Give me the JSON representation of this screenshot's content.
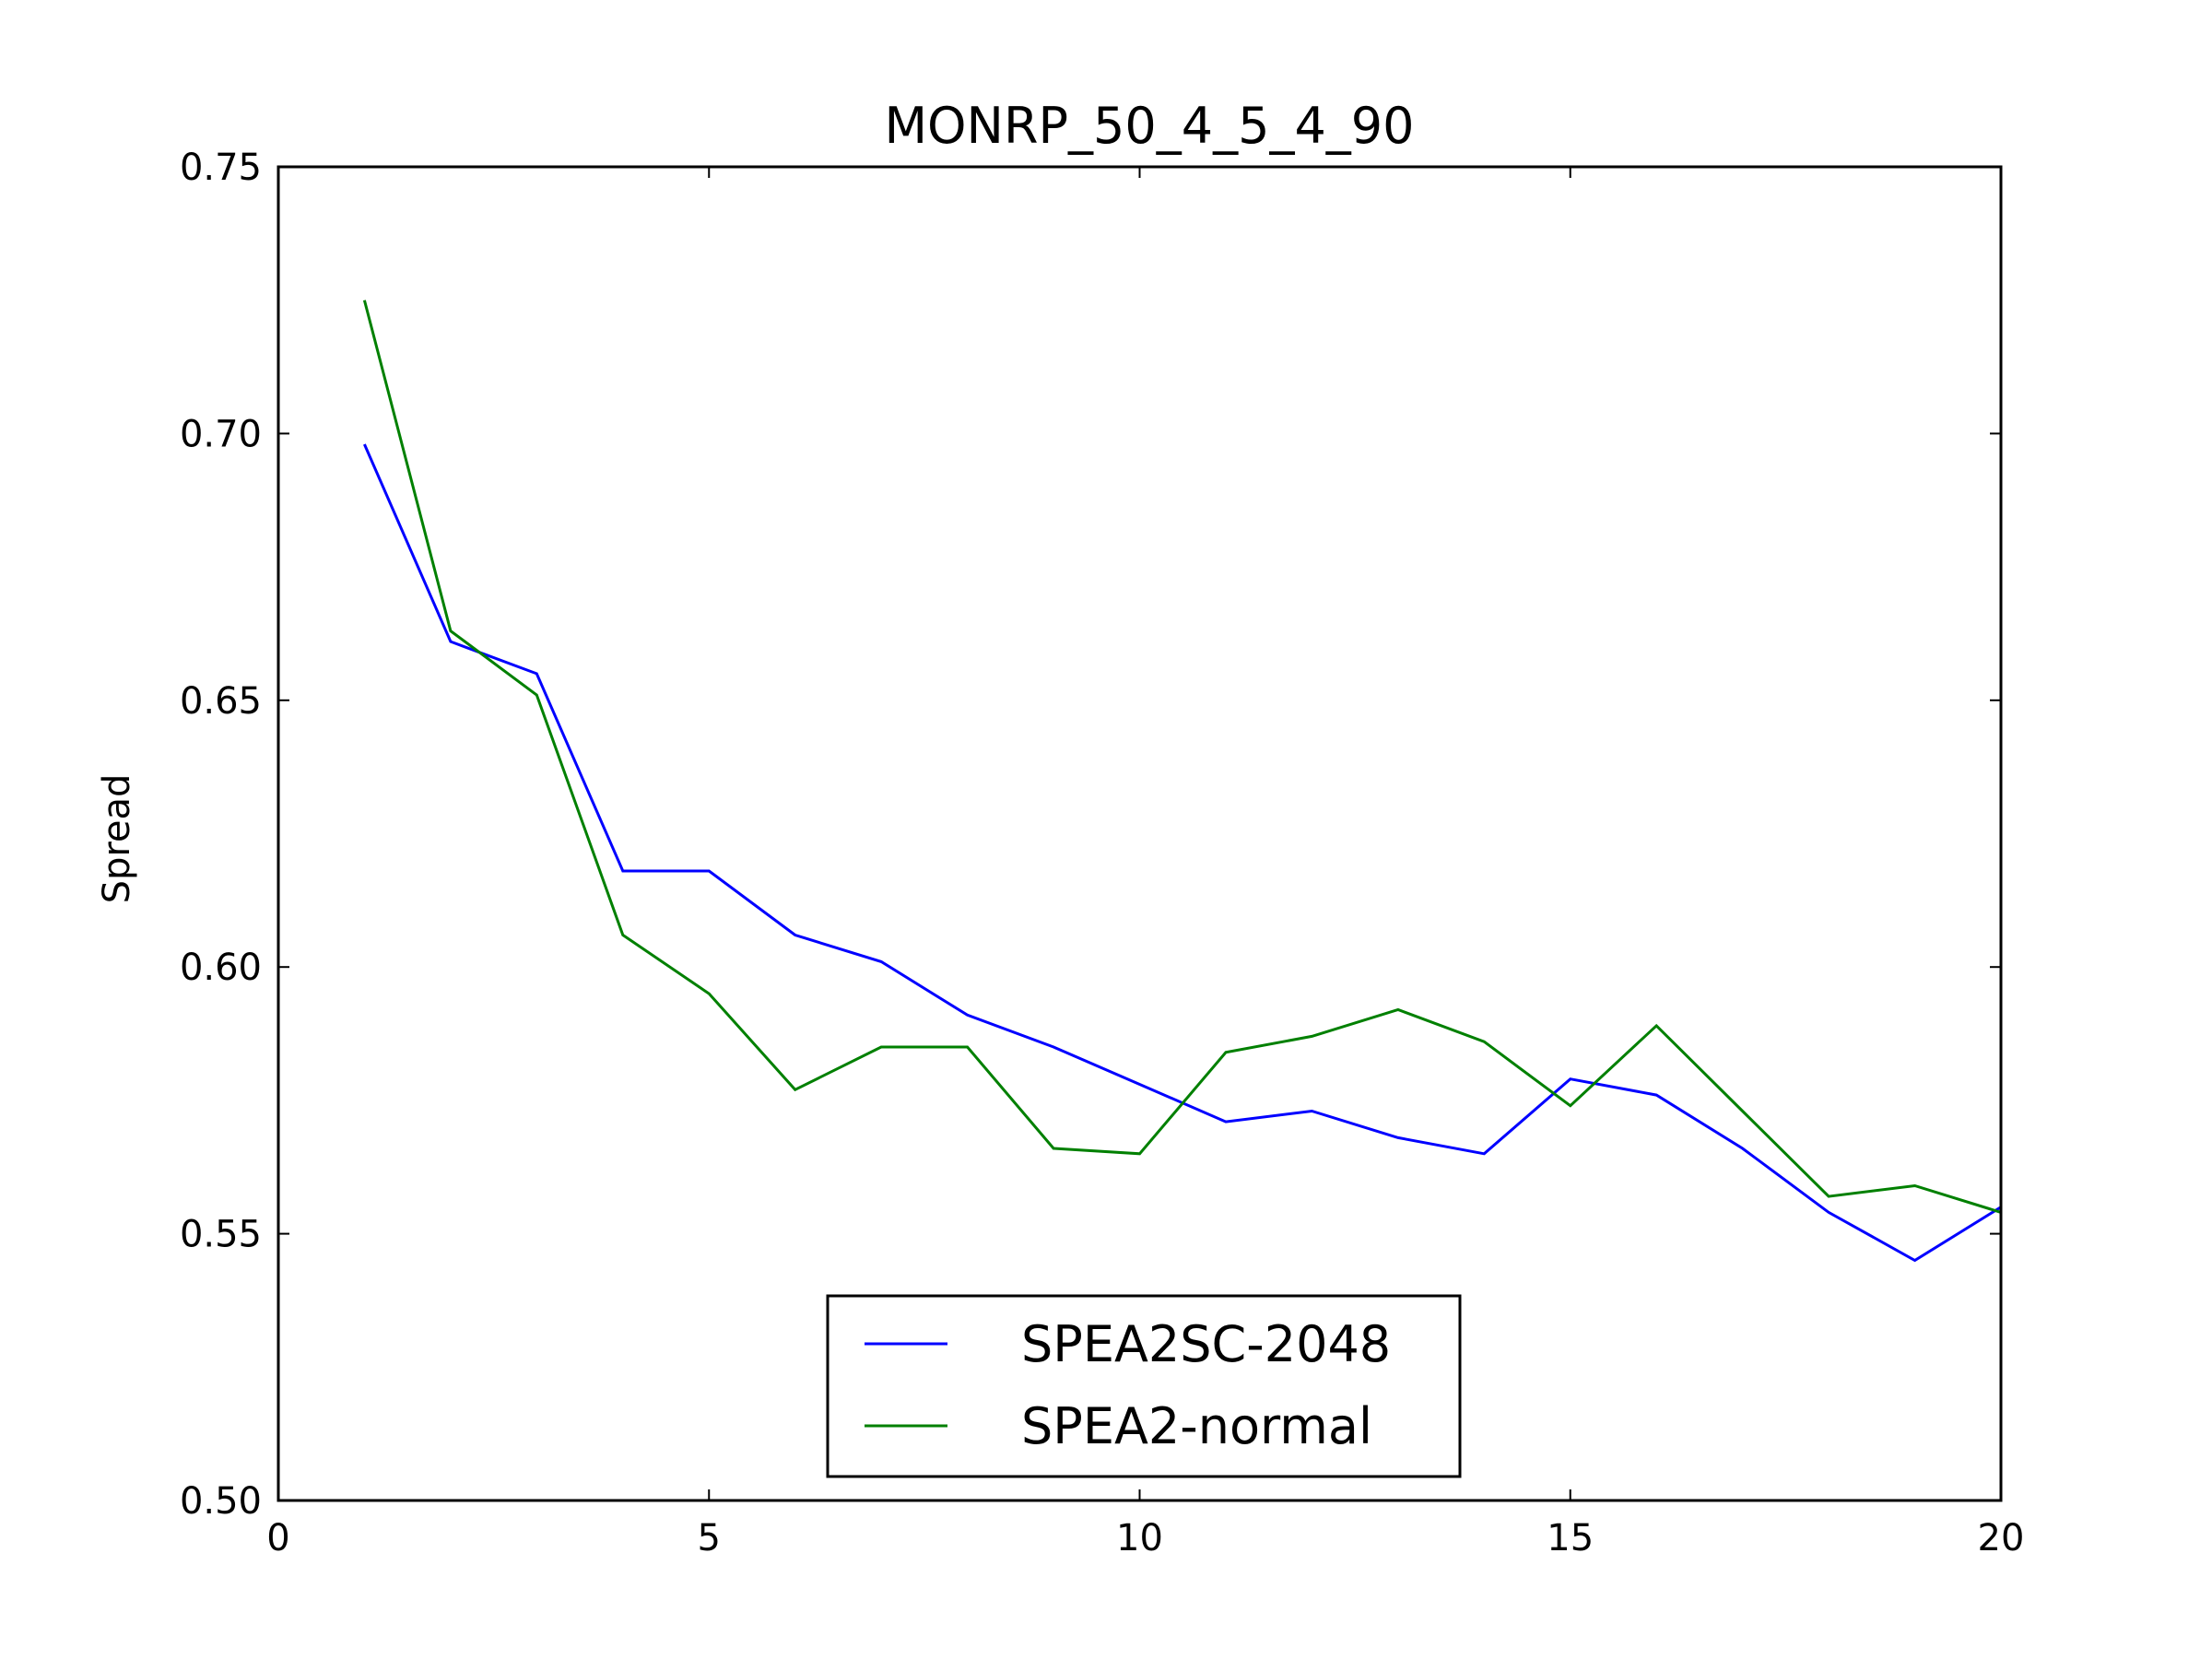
{
  "chart_data": {
    "type": "line",
    "title": "MONRP_50_4_5_4_90",
    "xlabel": "",
    "ylabel": "Spread",
    "xlim": [
      0,
      20
    ],
    "ylim": [
      0.5,
      0.75
    ],
    "xticks": [
      "0",
      "5",
      "10",
      "15",
      "20"
    ],
    "yticks": [
      "0.50",
      "0.55",
      "0.60",
      "0.65",
      "0.70",
      "0.75"
    ],
    "grid": false,
    "legend_position": "lower center",
    "x": [
      1,
      2,
      3,
      4,
      5,
      6,
      7,
      8,
      9,
      10,
      11,
      12,
      13,
      14,
      15,
      16,
      17,
      18,
      19,
      20
    ],
    "series": [
      {
        "name": "SPEA2SC-2048",
        "color": "#0000ff",
        "values": [
          0.698,
          0.661,
          0.655,
          0.618,
          0.618,
          0.606,
          0.601,
          0.591,
          0.585,
          0.578,
          0.571,
          0.573,
          0.568,
          0.565,
          0.579,
          0.576,
          0.566,
          0.554,
          0.545,
          0.555
        ]
      },
      {
        "name": "SPEA2-normal",
        "color": "#008000",
        "values": [
          0.725,
          0.663,
          0.651,
          0.606,
          0.595,
          0.577,
          0.585,
          0.585,
          0.566,
          0.565,
          0.584,
          0.587,
          0.592,
          0.586,
          0.574,
          0.589,
          0.573,
          0.557,
          0.559,
          0.554
        ]
      }
    ]
  }
}
